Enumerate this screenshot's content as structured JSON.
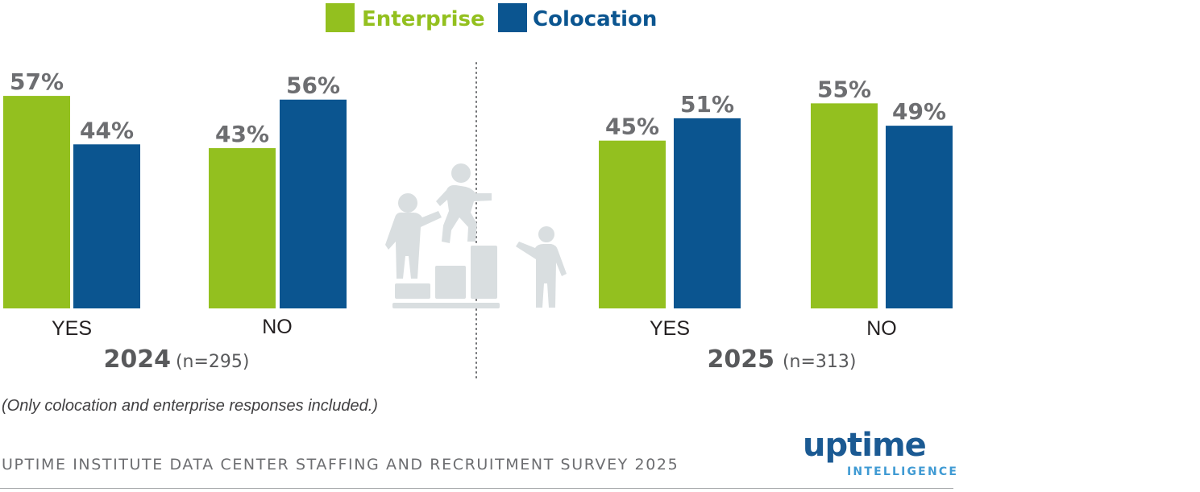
{
  "chart_data": {
    "type": "bar",
    "title": "",
    "ylim": [
      0,
      100
    ],
    "legend": {
      "position": "top-center",
      "entries": [
        {
          "name": "Enterprise",
          "color": "#93c01f"
        },
        {
          "name": "Colocation",
          "color": "#0b5590"
        }
      ]
    },
    "groups": [
      {
        "year": "2024",
        "n_label": "(n=295)",
        "categories": [
          "YES",
          "NO"
        ],
        "series": [
          {
            "name": "Enterprise",
            "values": [
              57,
              43
            ],
            "labels": [
              "57%",
              "43%"
            ]
          },
          {
            "name": "Colocation",
            "values": [
              44,
              56
            ],
            "labels": [
              "44%",
              "56%"
            ]
          }
        ]
      },
      {
        "year": "2025",
        "n_label": "(n=313)",
        "categories": [
          "YES",
          "NO"
        ],
        "series": [
          {
            "name": "Enterprise",
            "values": [
              45,
              55
            ],
            "labels": [
              "45%",
              "55%"
            ]
          },
          {
            "name": "Colocation",
            "values": [
              51,
              49
            ],
            "labels": [
              "51%",
              "49%"
            ]
          }
        ]
      }
    ]
  },
  "illustration": {
    "icon": "people-climbing-steps-icon",
    "color": "#d9dee0"
  },
  "note": "(Only colocation and enterprise responses included.)",
  "footer": {
    "source": "UPTIME INSTITUTE DATA CENTER STAFFING AND RECRUITMENT SURVEY 2025",
    "logo_main": "uptime",
    "logo_sub": "INTELLIGENCE"
  }
}
